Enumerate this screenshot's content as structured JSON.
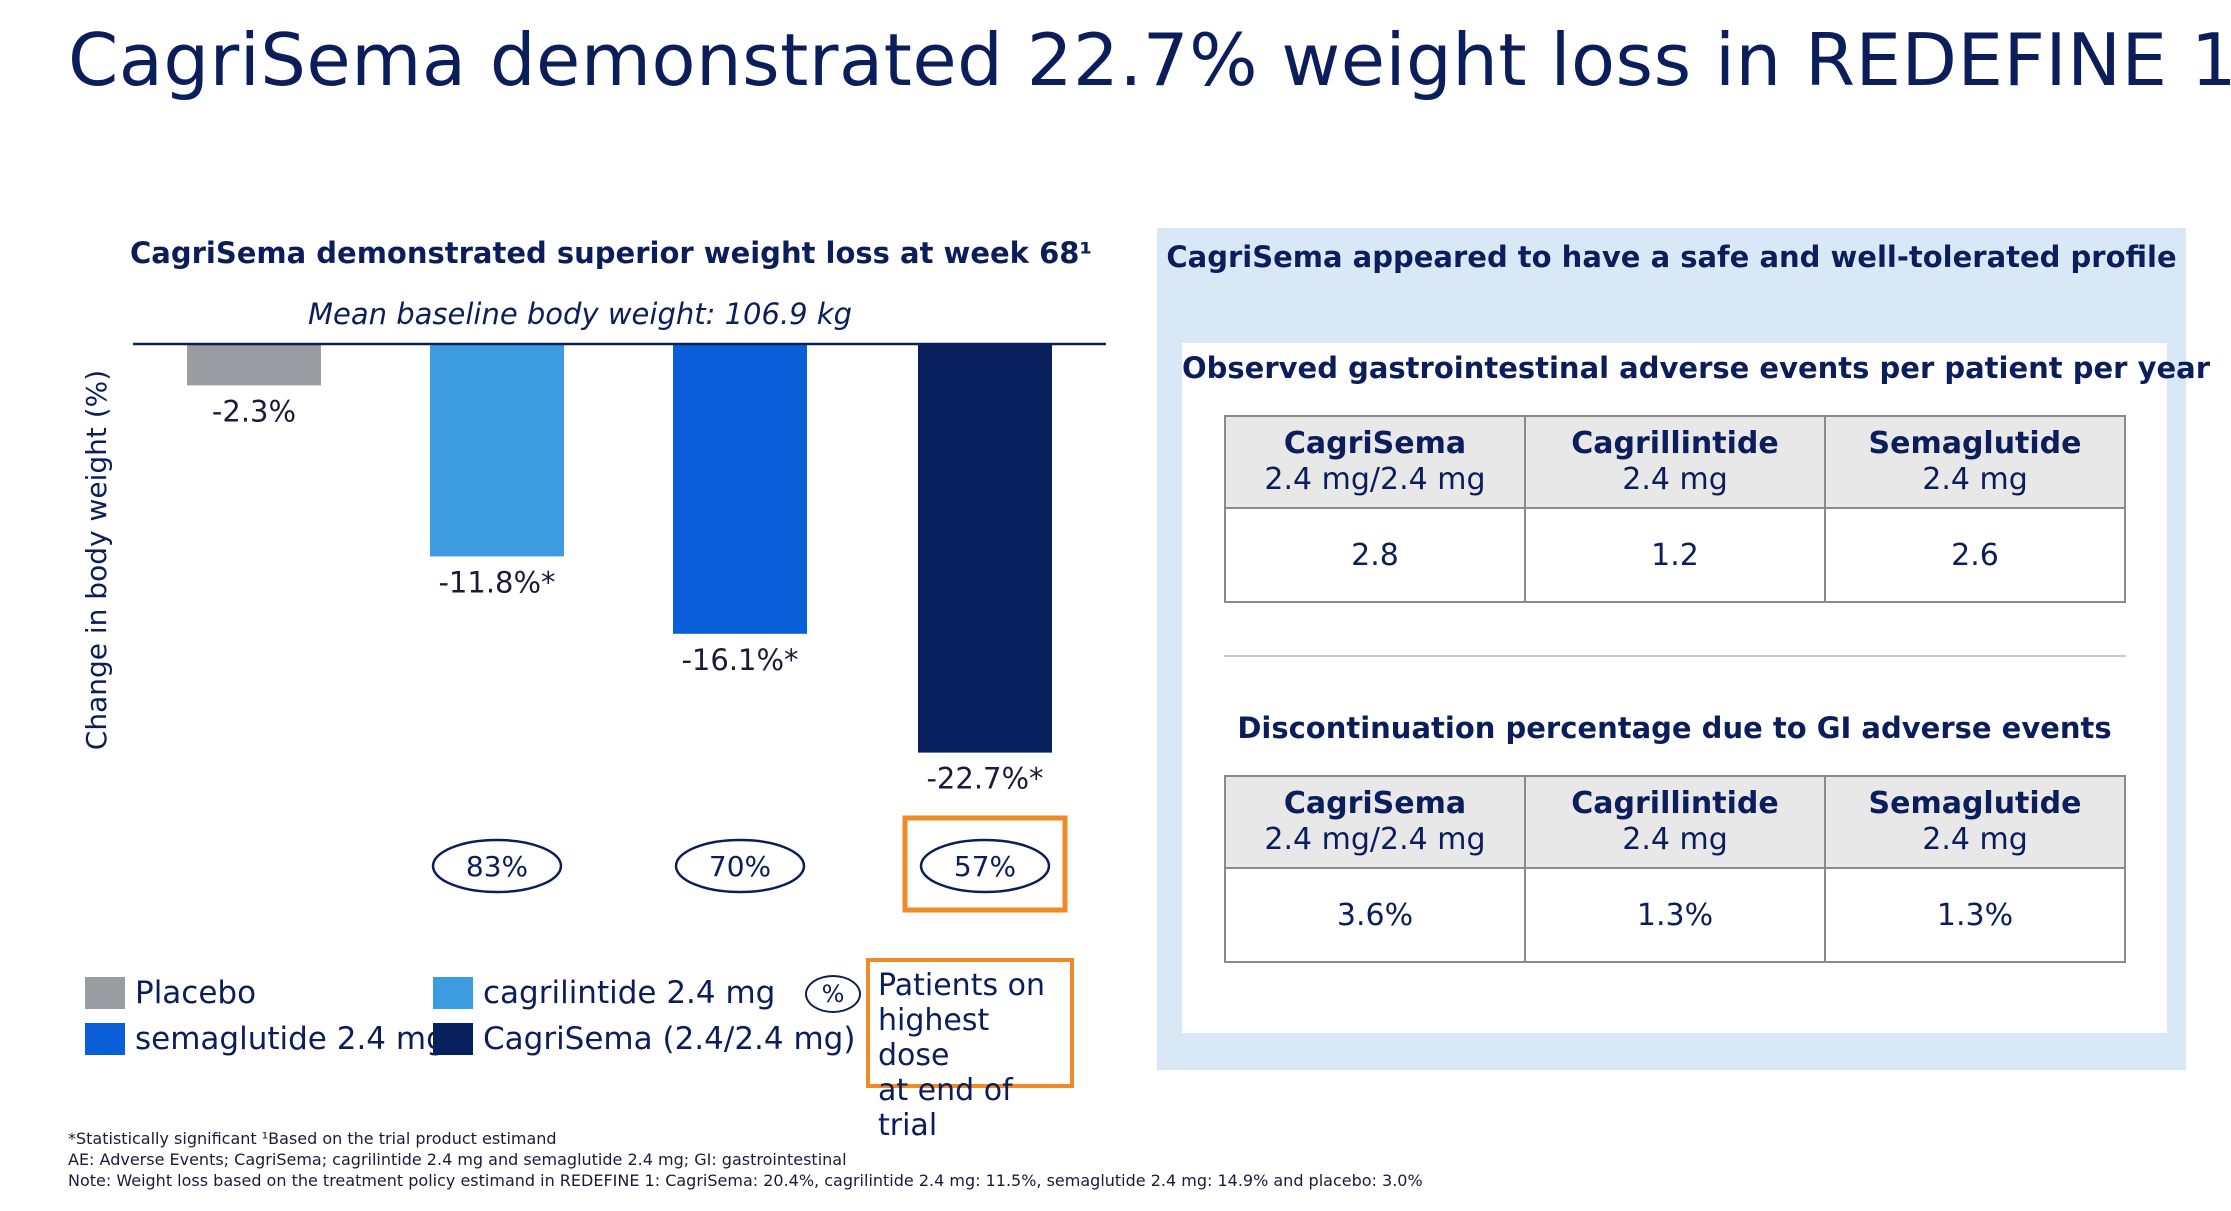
{
  "page": {
    "title": "CagriSema demonstrated 22.7% weight loss in REDEFINE 1"
  },
  "chart_data": {
    "type": "bar",
    "title": "CagriSema demonstrated superior weight loss at week 68¹",
    "subtitle": "Mean baseline body weight: 106.9 kg",
    "ylabel": "Change in body weight (%)",
    "ylim": [
      -25,
      0
    ],
    "categories": [
      "Placebo",
      "cagrilintide 2.4 mg",
      "semaglutide 2.4 mg",
      "CagriSema (2.4/2.4 mg)"
    ],
    "values": [
      -2.3,
      -11.8,
      -16.1,
      -22.7
    ],
    "data_labels": [
      "-2.3%",
      "-11.8%*",
      "-16.1%*",
      "-22.7%*"
    ],
    "colors": [
      "#9a9ca2",
      "#3d9be0",
      "#0a5fd9",
      "#08215e"
    ],
    "highest_dose_pct": [
      null,
      "83%",
      "70%",
      "57%"
    ],
    "highlighted_index": 3
  },
  "legend": {
    "items": [
      {
        "label": "Placebo",
        "color": "#9a9ca2"
      },
      {
        "label": "cagrilintide 2.4 mg",
        "color": "#3d9be0"
      },
      {
        "label": "semaglutide 2.4 mg",
        "color": "#0a5fd9"
      },
      {
        "label": "CagriSema (2.4/2.4 mg)",
        "color": "#08215e"
      }
    ],
    "pct_symbol": "%",
    "pct_line1": "Patients on",
    "pct_line2": "highest dose",
    "pct_line3": "at end of trial"
  },
  "right_panel": {
    "heading": "CagriSema appeared to have a safe and well-tolerated profile",
    "table1": {
      "title": "Observed gastrointestinal adverse events per patient per year",
      "columns": [
        {
          "drug": "CagriSema",
          "dose": "2.4 mg/2.4 mg"
        },
        {
          "drug": "Cagrillintide",
          "dose": "2.4 mg"
        },
        {
          "drug": "Semaglutide",
          "dose": "2.4 mg"
        }
      ],
      "values": [
        "2.8",
        "1.2",
        "2.6"
      ]
    },
    "table2": {
      "title": "Discontinuation percentage due to GI adverse events",
      "columns": [
        {
          "drug": "CagriSema",
          "dose": "2.4 mg/2.4 mg"
        },
        {
          "drug": "Cagrillintide",
          "dose": "2.4 mg"
        },
        {
          "drug": "Semaglutide",
          "dose": "2.4 mg"
        }
      ],
      "values": [
        "3.6%",
        "1.3%",
        "1.3%"
      ]
    }
  },
  "footnotes": {
    "line1": "*Statistically significant ¹Based on the trial product estimand",
    "line2": "AE: Adverse Events; CagriSema; cagrilintide 2.4 mg and semaglutide 2.4 mg; GI: gastrointestinal",
    "line3": "Note: Weight loss based on the treatment policy estimand in REDEFINE 1: CagriSema: 20.4%, cagrilintide 2.4 mg: 11.5%, semaglutide 2.4 mg: 14.9% and placebo: 3.0%"
  },
  "colors": {
    "accent_navy": "#0b1e5b",
    "highlight_orange": "#f08a24",
    "panel_bg": "#d9e8f6"
  }
}
